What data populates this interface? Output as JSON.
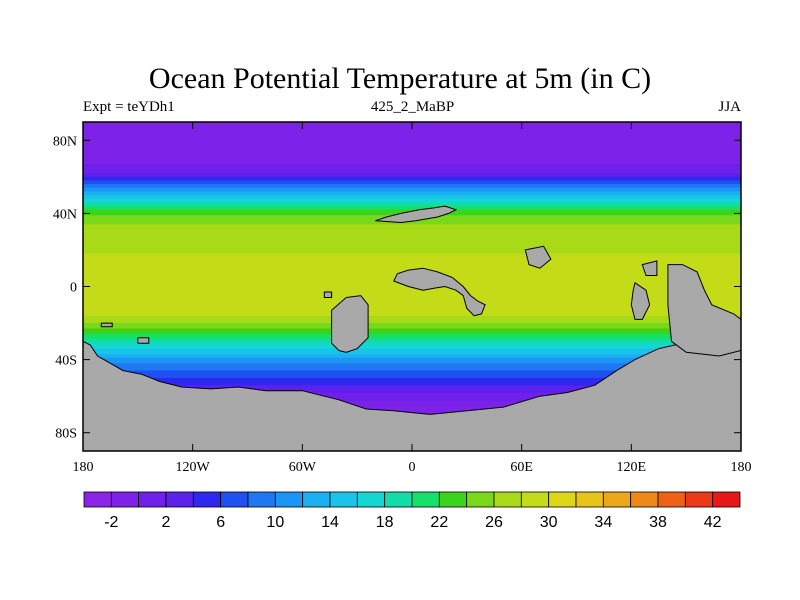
{
  "title": "Ocean Potential Temperature at 5m (in C)",
  "subtitle_left": "Expt = teYDh1",
  "subtitle_center": "425_2_MaBP",
  "subtitle_right": "JJA",
  "map": {
    "lon_range": [
      -180,
      180
    ],
    "lat_range": [
      -90,
      90
    ],
    "land_color": "#a9a9a9",
    "x_ticks": [
      {
        "value": -180,
        "label": "180"
      },
      {
        "value": -120,
        "label": "120W"
      },
      {
        "value": -60,
        "label": "60W"
      },
      {
        "value": 0,
        "label": "0"
      },
      {
        "value": 60,
        "label": "60E"
      },
      {
        "value": 120,
        "label": "120E"
      },
      {
        "value": 180,
        "label": "180"
      }
    ],
    "y_ticks": [
      {
        "value": 80,
        "label": "80N"
      },
      {
        "value": 40,
        "label": "40N"
      },
      {
        "value": 0,
        "label": "0"
      },
      {
        "value": -40,
        "label": "40S"
      },
      {
        "value": -80,
        "label": "80S"
      }
    ],
    "zonal_profile": [
      [
        90,
        -2
      ],
      [
        70,
        -1
      ],
      [
        62,
        2
      ],
      [
        58,
        6
      ],
      [
        54,
        10
      ],
      [
        50,
        14
      ],
      [
        46,
        18
      ],
      [
        42,
        22
      ],
      [
        38,
        25
      ],
      [
        32,
        26.5
      ],
      [
        24,
        27.5
      ],
      [
        12,
        28.5
      ],
      [
        4,
        30
      ],
      [
        0,
        29.5
      ],
      [
        -8,
        29
      ],
      [
        -16,
        28
      ],
      [
        -22,
        25
      ],
      [
        -26,
        22
      ],
      [
        -30,
        19
      ],
      [
        -34,
        16
      ],
      [
        -38,
        13
      ],
      [
        -42,
        10
      ],
      [
        -48,
        7
      ],
      [
        -54,
        4
      ],
      [
        -60,
        1
      ],
      [
        -66,
        -1
      ],
      [
        -90,
        -2
      ]
    ]
  },
  "colorbar": {
    "colors": [
      "#8b24e6",
      "#7d22e8",
      "#6f20ea",
      "#5b22ec",
      "#2f28f0",
      "#1f50f2",
      "#1e78f4",
      "#1c96f4",
      "#1ab0f2",
      "#18c4ea",
      "#14d6d2",
      "#12dca8",
      "#14e06a",
      "#3cd41a",
      "#7ad81a",
      "#a8da18",
      "#c4dc18",
      "#dcd818",
      "#e6c418",
      "#eca818",
      "#ee8818",
      "#ee6218",
      "#ec3a18",
      "#e81818"
    ],
    "labels": [
      "-2",
      "2",
      "6",
      "10",
      "14",
      "18",
      "22",
      "26",
      "30",
      "34",
      "38",
      "42"
    ]
  }
}
